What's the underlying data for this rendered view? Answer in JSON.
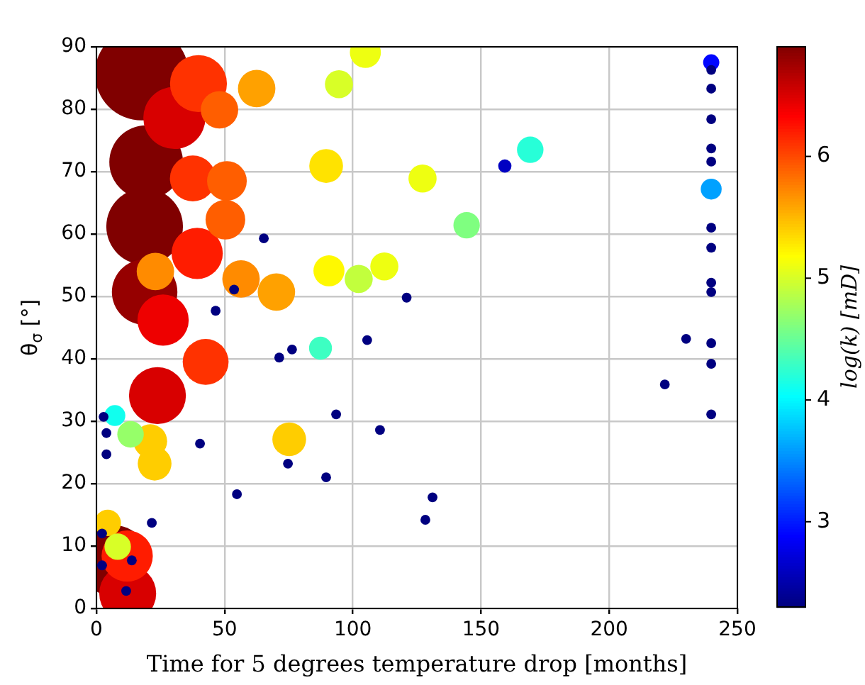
{
  "chart_data": {
    "type": "bubble",
    "xlabel": "Time for 5 degrees temperature drop [months]",
    "ylabel": "θ$_{σ}$ [°]",
    "clabel": "log(k) [mD]",
    "xlim": [
      0,
      250
    ],
    "xticks": [
      0,
      50,
      100,
      150,
      200,
      250
    ],
    "ylim": [
      0,
      90
    ],
    "yticks": [
      0,
      10,
      20,
      30,
      40,
      50,
      60,
      70,
      80,
      90
    ],
    "grid": true,
    "clim": [
      2.3,
      6.9
    ],
    "cticks": [
      3,
      4,
      5,
      6
    ],
    "x": [
      17.7,
      19.4,
      18.8,
      18.8,
      6.6,
      30.4,
      23.8,
      12.2,
      26,
      39.8,
      39.3,
      37.6,
      42.6,
      12,
      48,
      50.9,
      50.3,
      23,
      56.4,
      70.2,
      62.5,
      89.6,
      75.2,
      21,
      22.7,
      4.4,
      90.7,
      104.9,
      127.2,
      112.3,
      94.6,
      8.3,
      102.3,
      13.3,
      144.4,
      87.4,
      169.2,
      7.2,
      239.8,
      239.8,
      159.3,
      65.3,
      53.7,
      46.5,
      121,
      105.6,
      110.6,
      131.1,
      128.3,
      239.8,
      239.8,
      239.8,
      239.8,
      239.8,
      239.8,
      239.8,
      239.8,
      239.8,
      239.8,
      239.8,
      239.8,
      230,
      221.7,
      71.3,
      76.3,
      93.5,
      2.8,
      3.9,
      3.9,
      40.4,
      74.7,
      89.6,
      54.8,
      21.6,
      2.2,
      13.8,
      2.2,
      11.6
    ],
    "values": [
      85.7,
      71.5,
      61.2,
      50.7,
      7.7,
      78.6,
      34.1,
      2.4,
      46.2,
      84.1,
      56.9,
      68.9,
      39.5,
      8.4,
      79.9,
      68.5,
      62.3,
      54,
      52.8,
      50.7,
      83.3,
      70.9,
      27.1,
      26.8,
      23.2,
      13.7,
      54.1,
      89.1,
      68.9,
      54.8,
      84,
      9.9,
      52.8,
      27.9,
      61.4,
      41.7,
      73.5,
      30.9,
      67.2,
      87.5,
      70.9,
      59.3,
      51.1,
      47.7,
      49.8,
      43,
      28.6,
      17.8,
      14.2,
      86.3,
      83.3,
      78.4,
      73.7,
      71.6,
      61,
      57.8,
      52.2,
      50.7,
      42.5,
      39.2,
      31.1,
      43.2,
      35.9,
      40.2,
      41.5,
      31.1,
      30.7,
      28.1,
      24.7,
      26.4,
      23.2,
      21,
      18.3,
      13.7,
      12,
      7.7,
      6.9,
      2.8
    ],
    "sizes": [
      1,
      0.62,
      0.67,
      0.49,
      0.57,
      0.44,
      0.37,
      0.37,
      0.3,
      0.37,
      0.3,
      0.24,
      0.24,
      0.3,
      0.16,
      0.18,
      0.18,
      0.16,
      0.16,
      0.16,
      0.16,
      0.13,
      0.13,
      0.13,
      0.13,
      0.08,
      0.11,
      0.11,
      0.09,
      0.09,
      0.09,
      0.08,
      0.09,
      0.08,
      0.08,
      0.06,
      0.08,
      0.05,
      0.05,
      0.03,
      0.02,
      0.011,
      0.011,
      0.011,
      0.011,
      0.011,
      0.011,
      0.011,
      0.011,
      0.011,
      0.011,
      0.011,
      0.011,
      0.011,
      0.011,
      0.011,
      0.011,
      0.011,
      0.011,
      0.011,
      0.011,
      0.011,
      0.011,
      0.011,
      0.011,
      0.011,
      0.011,
      0.011,
      0.011,
      0.011,
      0.011,
      0.011,
      0.011,
      0.011,
      0.011,
      0.011,
      0.011,
      0.011
    ],
    "cvalues": [
      6.9,
      6.9,
      6.9,
      6.8,
      6.9,
      6.5,
      6.5,
      6.5,
      6.4,
      6.1,
      6.2,
      6.1,
      6.1,
      6.2,
      5.9,
      5.9,
      5.9,
      5.7,
      5.7,
      5.6,
      5.6,
      5.3,
      5.4,
      5.4,
      5.4,
      5.4,
      5.2,
      5.1,
      5.1,
      5.1,
      5,
      5,
      4.9,
      4.7,
      4.6,
      4.3,
      4.2,
      4.1,
      3.6,
      2.9,
      2.6,
      2.3,
      2.3,
      2.3,
      2.3,
      2.3,
      2.3,
      2.3,
      2.3,
      2.3,
      2.3,
      2.3,
      2.3,
      2.3,
      2.3,
      2.3,
      2.3,
      2.3,
      2.3,
      2.3,
      2.3,
      2.3,
      2.3,
      2.3,
      2.3,
      2.3,
      2.3,
      2.3,
      2.3,
      2.3,
      2.3,
      2.3,
      2.3,
      2.3,
      2.3,
      2.3,
      2.3,
      2.3
    ]
  }
}
